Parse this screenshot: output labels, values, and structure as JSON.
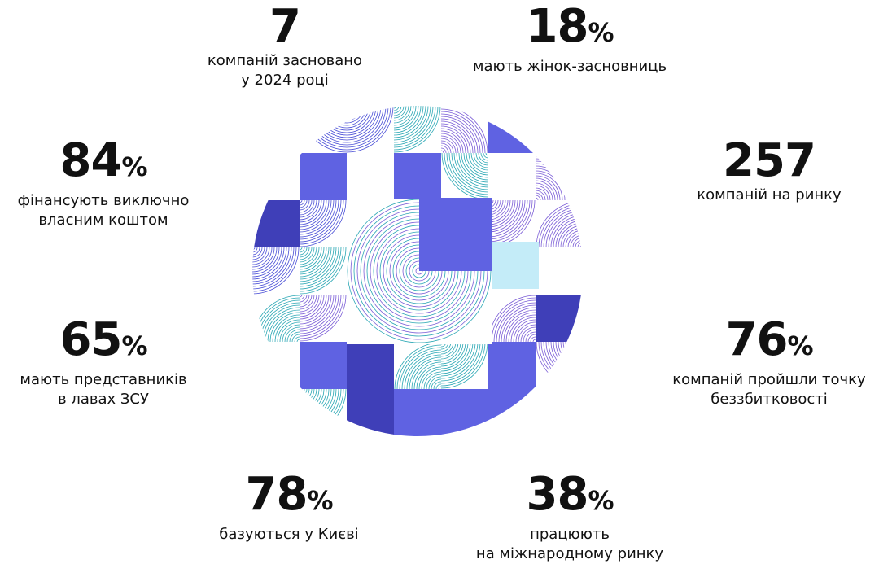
{
  "stats": [
    {
      "value": "7",
      "lines": [
        "компаній засновано",
        "у 2024 році"
      ]
    },
    {
      "value": "18",
      "suffix": "%",
      "lines": [
        "мають жінок-засновниць"
      ]
    },
    {
      "value": "84",
      "suffix": "%",
      "lines": [
        "фінансують виключно",
        "власним коштом"
      ]
    },
    {
      "value": "257",
      "lines": [
        "компаній на ринку"
      ]
    },
    {
      "value": "65",
      "suffix": "%",
      "lines": [
        "мають представників",
        "в лавах ЗСУ"
      ]
    },
    {
      "value": "76",
      "suffix": "%",
      "lines": [
        "компаній пройшли точку",
        "беззбитковості"
      ]
    },
    {
      "value": "78",
      "suffix": "%",
      "lines": [
        "базуються у Києві"
      ]
    },
    {
      "value": "38",
      "suffix": "%",
      "lines": [
        "працюють",
        "на міжнародному ринку"
      ]
    }
  ]
}
